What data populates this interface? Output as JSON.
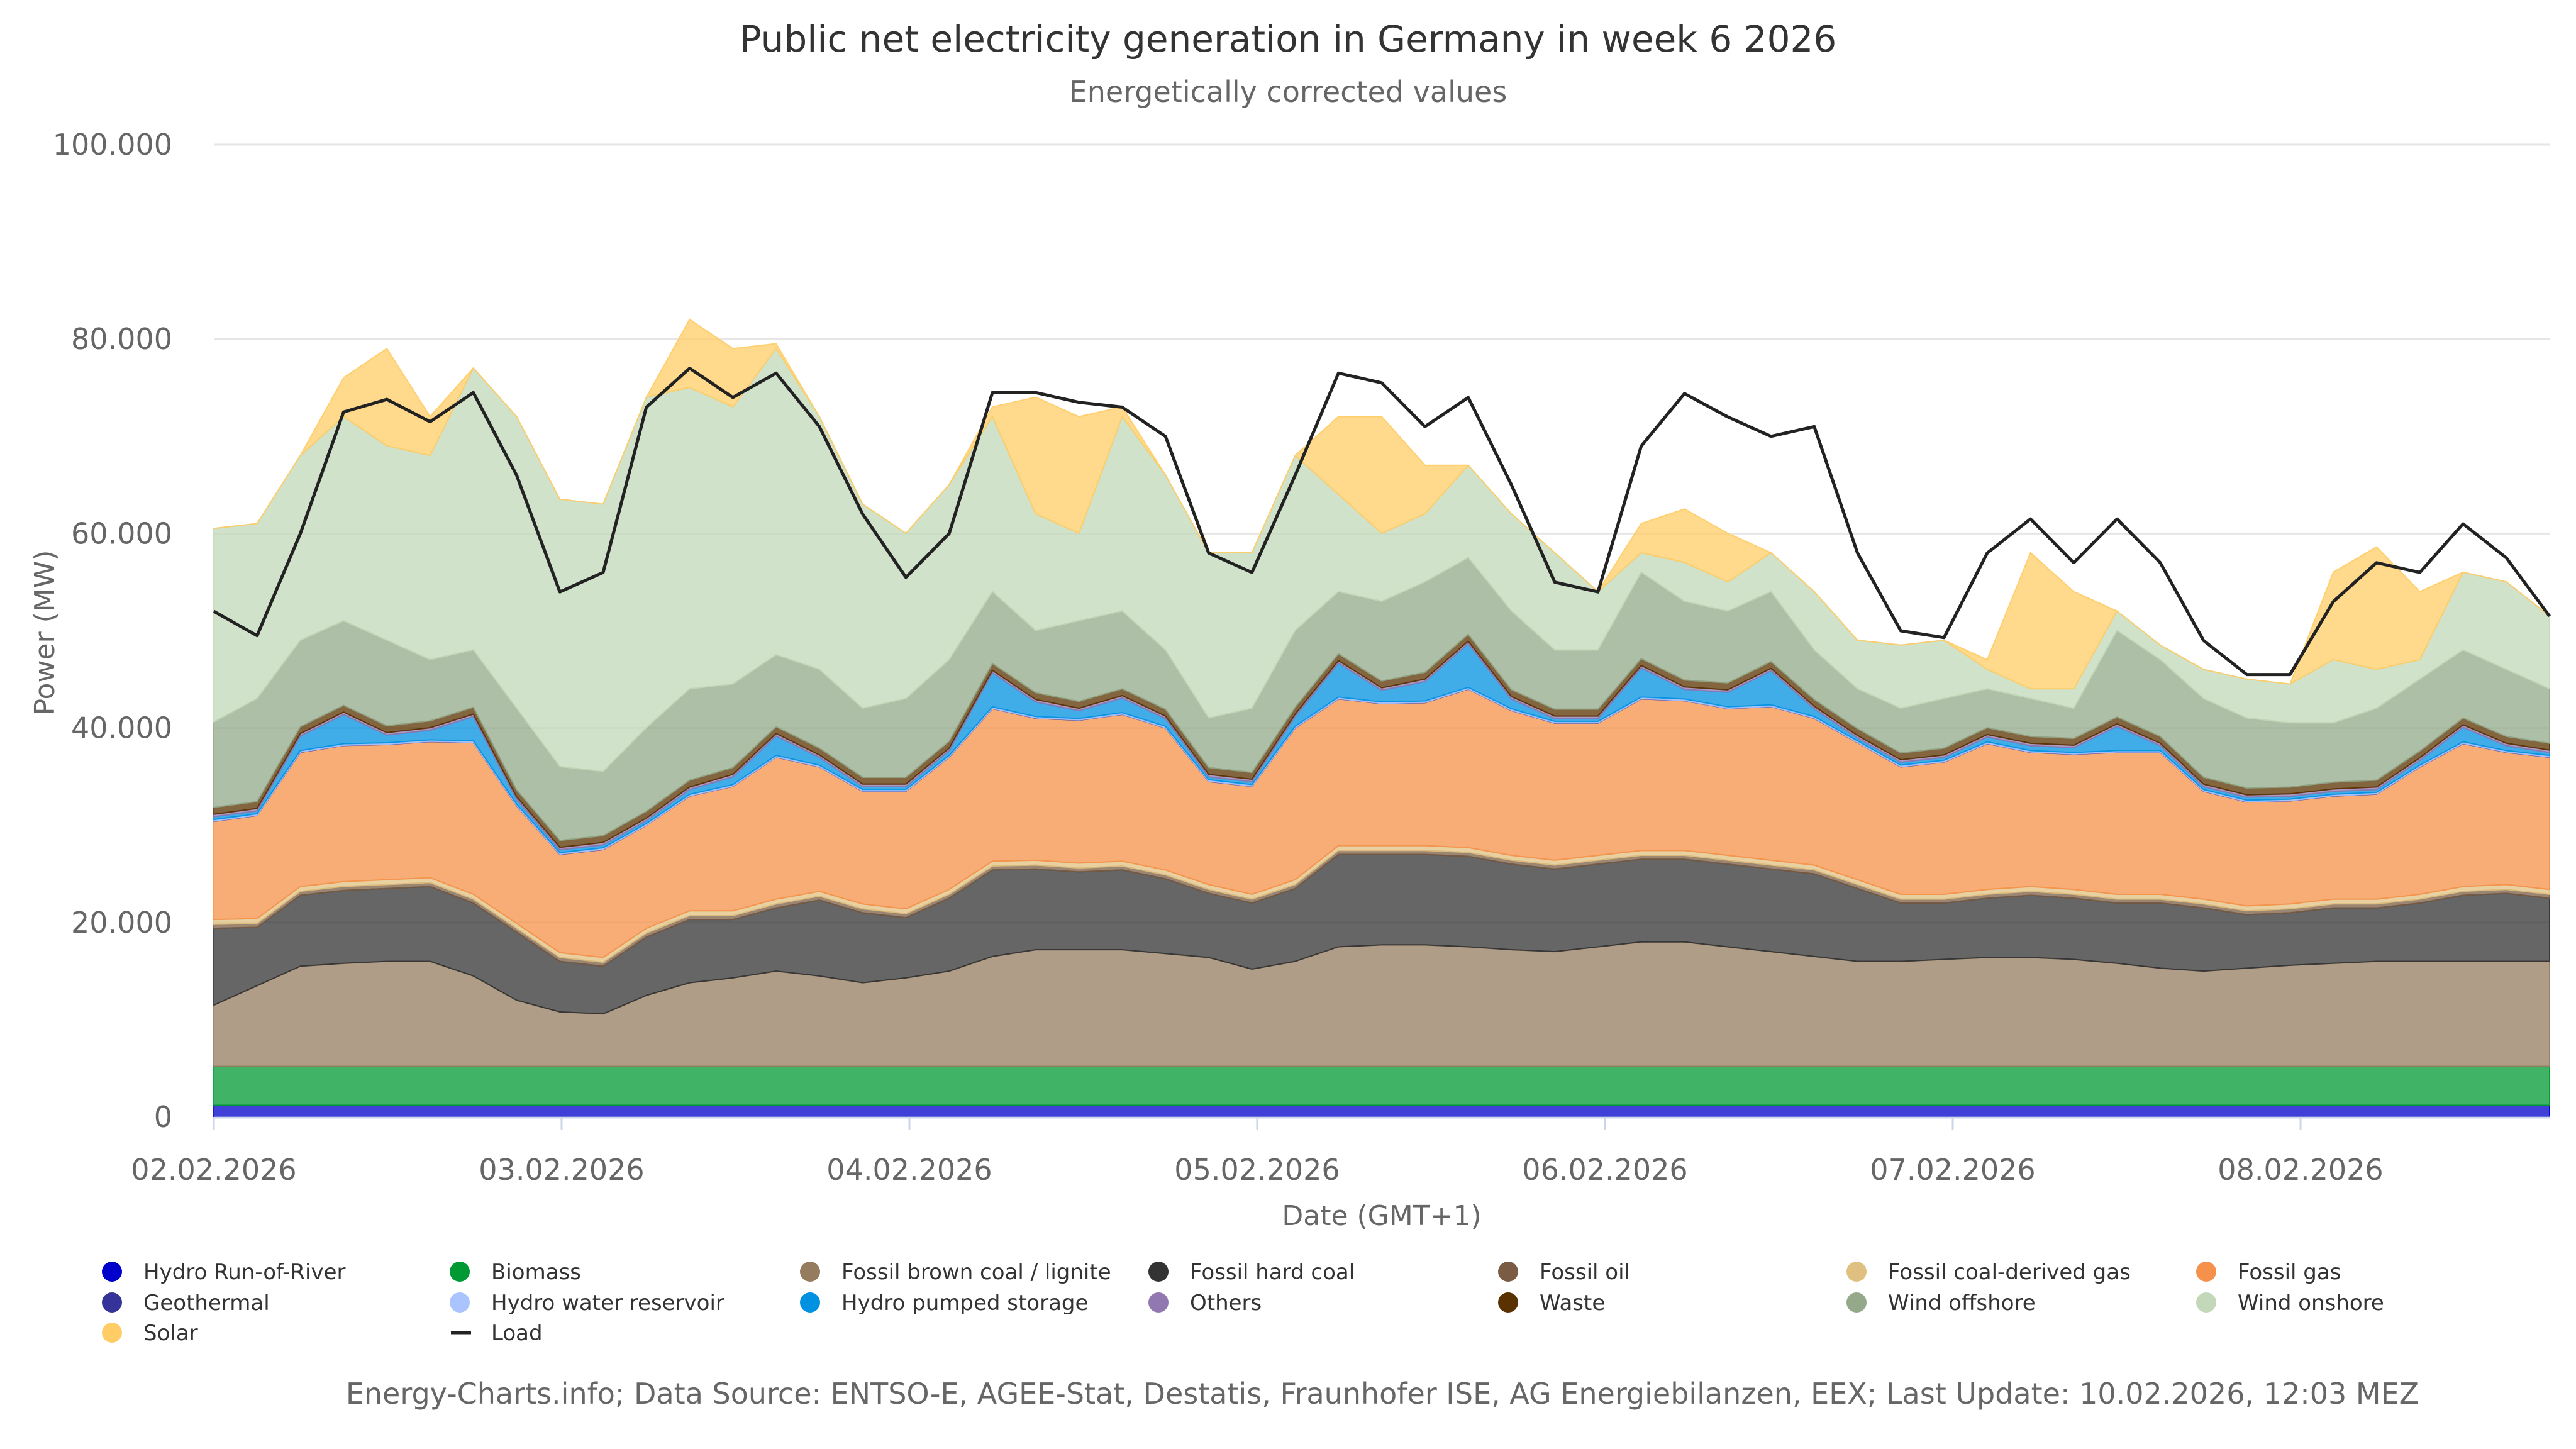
{
  "chart_data": {
    "type": "area",
    "stacked": true,
    "title": "Public net electricity generation in Germany in week 6 2026",
    "subtitle": "Energetically corrected values",
    "xlabel": "Date (GMT+1)",
    "ylabel": "Power (MW)",
    "ylim": [
      0,
      100000
    ],
    "y_ticks": [
      {
        "value": 0,
        "label": "0"
      },
      {
        "value": 20000,
        "label": "20.000"
      },
      {
        "value": 40000,
        "label": "40.000"
      },
      {
        "value": 60000,
        "label": "60.000"
      },
      {
        "value": 80000,
        "label": "80.000"
      },
      {
        "value": 100000,
        "label": "100.000"
      }
    ],
    "x_ticks": [
      "02.02.2026",
      "03.02.2026",
      "04.02.2026",
      "05.02.2026",
      "06.02.2026",
      "07.02.2026",
      "08.02.2026"
    ],
    "x_start": "02.02.2026 00:00",
    "x_span_hours": 168,
    "samples": 55,
    "grid": true,
    "legend_position": "bottom",
    "series": [
      {
        "name": "Hydro Run-of-River",
        "color": "#0000cc",
        "constant": 1200
      },
      {
        "name": "Biomass",
        "color": "#009933",
        "constant": 4000
      },
      {
        "name": "Fossil brown coal / lignite",
        "color": "#957c5f",
        "values": [
          6300,
          8300,
          10300,
          10600,
          10800,
          10800,
          9300,
          6800,
          5600,
          5400,
          7300,
          8600,
          9100,
          9800,
          9300,
          8600,
          9100,
          9800,
          11300,
          12000,
          12000,
          12000,
          11600,
          11200,
          10000,
          10800,
          12300,
          12500,
          12500,
          12300,
          12000,
          11800,
          12300,
          12800,
          12800,
          12300,
          11800,
          11300,
          10800,
          10800,
          11000,
          11200,
          11200,
          11000,
          10600,
          10100,
          9800,
          10100,
          10400,
          10600,
          10800,
          10800,
          10800,
          10800,
          10800
        ]
      },
      {
        "name": "Fossil hard coal",
        "color": "#333333",
        "values": [
          7900,
          6000,
          7300,
          7500,
          7500,
          7700,
          7500,
          7000,
          5200,
          4900,
          6000,
          6500,
          6000,
          6500,
          7800,
          7200,
          6200,
          7500,
          8900,
          8300,
          8000,
          8200,
          7700,
          6600,
          6800,
          7500,
          9500,
          9300,
          9300,
          9300,
          8800,
          8500,
          8500,
          8500,
          8500,
          8500,
          8500,
          8500,
          7500,
          6000,
          5800,
          6100,
          6400,
          6300,
          6200,
          6700,
          6500,
          5500,
          5400,
          5700,
          5500,
          6000,
          6800,
          7000,
          6500
        ]
      },
      {
        "name": "Fossil oil",
        "color": "#7a5c44",
        "constant": 400
      },
      {
        "name": "Fossil coal-derived gas",
        "color": "#e0c080",
        "constant": 500
      },
      {
        "name": "Fossil gas",
        "color": "#f5914a",
        "values": [
          10100,
          10600,
          13800,
          14000,
          13900,
          14000,
          15600,
          12100,
          10100,
          11100,
          10600,
          11800,
          12800,
          14600,
          12800,
          11600,
          12100,
          13600,
          15700,
          14600,
          14700,
          15100,
          14600,
          10600,
          11100,
          15600,
          15100,
          14600,
          14700,
          16300,
          14900,
          14100,
          13600,
          15600,
          15400,
          15100,
          15800,
          15100,
          14100,
          13100,
          13600,
          15000,
          13800,
          13900,
          14600,
          14600,
          11100,
          10700,
          10600,
          10600,
          10800,
          13100,
          14700,
          13600,
          13600
        ]
      },
      {
        "name": "Geothermal",
        "color": "#333399",
        "constant": 30
      },
      {
        "name": "Hydro water reservoir",
        "color": "#aac4ff",
        "constant": 150
      },
      {
        "name": "Hydro pumped storage",
        "color": "#0091e0",
        "values": [
          300,
          300,
          1500,
          3000,
          800,
          1000,
          2500,
          500,
          300,
          300,
          300,
          500,
          800,
          2000,
          800,
          300,
          300,
          500,
          3500,
          1500,
          800,
          1500,
          800,
          300,
          300,
          1000,
          3500,
          1200,
          2000,
          4500,
          1000,
          300,
          300,
          3000,
          1000,
          1500,
          3500,
          800,
          300,
          300,
          300,
          500,
          500,
          500,
          2500,
          500,
          300,
          300,
          300,
          300,
          300,
          500,
          1500,
          500,
          300
        ]
      },
      {
        "name": "Others",
        "color": "#9178b0",
        "constant": 250
      },
      {
        "name": "Waste",
        "color": "#5a3200",
        "constant": 700
      },
      {
        "name": "Wind offshore",
        "color": "#93a98a",
        "values": [
          8800,
          10600,
          8900,
          8700,
          8800,
          6300,
          5900,
          8400,
          7600,
          6600,
          8600,
          9400,
          8600,
          7400,
          8100,
          7100,
          8100,
          8400,
          7400,
          6400,
          8300,
          8000,
          6100,
          5100,
          6600,
          7900,
          6400,
          8200,
          9300,
          7900,
          8100,
          6100,
          6100,
          8900,
          8100,
          7400,
          7200,
          5100,
          4100,
          4600,
          5100,
          4000,
          3900,
          3100,
          8900,
          7900,
          8100,
          7200,
          6600,
          6100,
          7400,
          7400,
          7000,
          6900,
          5600
        ]
      },
      {
        "name": "Wind onshore",
        "color": "#c2d8b8",
        "values": [
          19900,
          18000,
          19000,
          21000,
          20000,
          21000,
          29000,
          30000,
          27500,
          27500,
          34000,
          31000,
          28500,
          31500,
          26000,
          21000,
          17000,
          18000,
          18000,
          12000,
          9000,
          20000,
          18000,
          17000,
          16000,
          18000,
          10000,
          7000,
          7000,
          9500,
          10000,
          10000,
          6000,
          2000,
          4000,
          3000,
          4000,
          6000,
          5000,
          6500,
          6000,
          2000,
          1000,
          2000,
          2000,
          1500,
          3000,
          4000,
          4000,
          6500,
          4000,
          2000,
          8000,
          9000,
          7500
        ]
      },
      {
        "name": "Solar",
        "color": "#ffcc66",
        "values": [
          0,
          0,
          0,
          4000,
          10000,
          4000,
          0,
          0,
          0,
          0,
          0,
          7000,
          6000,
          500,
          0,
          0,
          0,
          0,
          1000,
          12000,
          12000,
          1000,
          0,
          0,
          0,
          0,
          8000,
          12000,
          5000,
          0,
          0,
          0,
          0,
          3000,
          5500,
          5000,
          0,
          0,
          0,
          0,
          0,
          1000,
          14000,
          10000,
          0,
          0,
          0,
          0,
          0,
          9000,
          12600,
          7000,
          0,
          0,
          0
        ]
      }
    ],
    "line": {
      "name": "Load",
      "color": "#222222",
      "values": [
        52000,
        49500,
        60000,
        72500,
        73800,
        71500,
        74500,
        66000,
        54000,
        56000,
        73000,
        77000,
        74000,
        76500,
        71000,
        62000,
        55500,
        60000,
        74500,
        74500,
        73500,
        73000,
        70000,
        58000,
        56000,
        66000,
        76500,
        75500,
        71000,
        74000,
        65000,
        55000,
        54000,
        69000,
        74400,
        72000,
        70000,
        71000,
        58000,
        50000,
        49300,
        58000,
        61500,
        57000,
        61500,
        57000,
        49000,
        45500,
        45500,
        53000,
        57000,
        56000,
        61000,
        57500,
        51500
      ]
    },
    "legend_order": [
      "Hydro Run-of-River",
      "Biomass",
      "Fossil brown coal / lignite",
      "Fossil hard coal",
      "Fossil oil",
      "Fossil coal-derived gas",
      "Fossil gas",
      "Geothermal",
      "Hydro water reservoir",
      "Hydro pumped storage",
      "Others",
      "Waste",
      "Wind offshore",
      "Wind onshore",
      "Solar",
      "Load"
    ]
  },
  "footer": "Energy-Charts.info; Data Source: ENTSO-E, AGEE-Stat, Destatis, Fraunhofer ISE, AG Energiebilanzen, EEX; Last Update: 10.02.2026, 12:03 MEZ"
}
